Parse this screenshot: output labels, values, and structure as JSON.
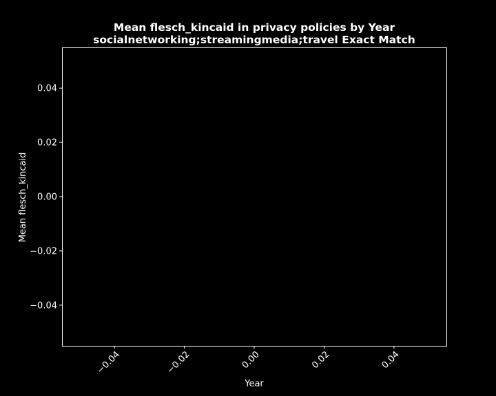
{
  "chart_data": {
    "type": "line",
    "title_lines": [
      "Mean flesch_kincaid in privacy policies by Year",
      "socialnetworking;streamingmedia;travel Exact Match"
    ],
    "xlabel": "Year",
    "ylabel": "Mean flesch_kincaid",
    "xlim": [
      -0.055,
      0.055
    ],
    "ylim": [
      -0.055,
      0.055
    ],
    "x_ticks": [
      -0.04,
      -0.02,
      0.0,
      0.02,
      0.04
    ],
    "x_tick_labels": [
      "−0.04",
      "−0.02",
      "0.00",
      "0.02",
      "0.04"
    ],
    "y_ticks": [
      0.04,
      0.02,
      0.0,
      -0.02,
      -0.04
    ],
    "y_tick_labels": [
      "0.04",
      "0.02",
      "0.00",
      "−0.02",
      "−0.04"
    ],
    "series": [],
    "grid": false,
    "background": "#000000",
    "foreground": "#ffffff"
  }
}
